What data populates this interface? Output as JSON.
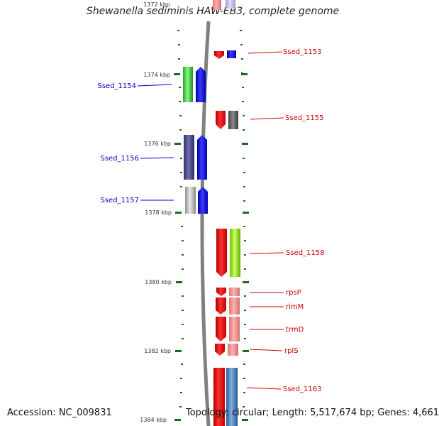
{
  "title": "Shewanella sediminis HAW-EB3, complete genome",
  "footer": {
    "accession": "Accession: NC_009831",
    "topology": "Topology: circular; Length: 5,517,674 bp; Genes: 4,661"
  },
  "colors": {
    "backbone": "#808080",
    "tick": "#1a6b1a",
    "label_left": "#0000cc",
    "label_right": "#cc0000"
  },
  "scale": {
    "top_label": "1372 kbp",
    "labels": [
      "1374 kbp",
      "1376 kbp",
      "1378 kbp",
      "1380 kbp",
      "1382 kbp",
      "1384 kbp"
    ]
  },
  "genes": [
    {
      "name": "Ssed_1153",
      "strand": "right"
    },
    {
      "name": "Ssed_1154",
      "strand": "left"
    },
    {
      "name": "Ssed_1155",
      "strand": "right"
    },
    {
      "name": "Ssed_1156",
      "strand": "left"
    },
    {
      "name": "Ssed_1157",
      "strand": "left"
    },
    {
      "name": "Ssed_1158",
      "strand": "right"
    },
    {
      "name": "rpsP",
      "strand": "right"
    },
    {
      "name": "rimM",
      "strand": "right"
    },
    {
      "name": "trmD",
      "strand": "right"
    },
    {
      "name": "rplS",
      "strand": "right"
    },
    {
      "name": "Ssed_1163",
      "strand": "right"
    }
  ]
}
